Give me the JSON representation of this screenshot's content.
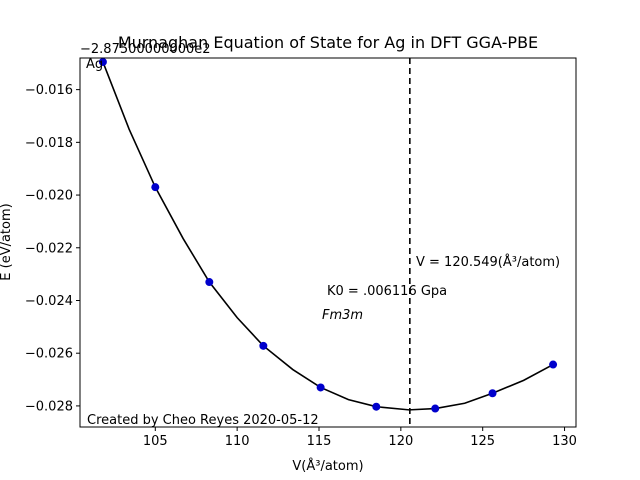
{
  "chart_data": {
    "type": "scatter",
    "title": "Murnaghan Equation of State for Ag in DFT GGA-PBE",
    "xlabel": "V(Å³/atom)",
    "ylabel": "E (eV/atom)",
    "y_offset_label": "−2.87500000000e2",
    "corner_label": "Ag",
    "xlim": [
      100.4,
      130.7
    ],
    "ylim": [
      -0.0288,
      -0.0148
    ],
    "xticks": [
      105,
      110,
      115,
      120,
      125,
      130
    ],
    "xtick_labels": [
      "105",
      "110",
      "115",
      "120",
      "125",
      "130"
    ],
    "yticks": [
      -0.028,
      -0.026,
      -0.024,
      -0.022,
      -0.02,
      -0.018,
      -0.016
    ],
    "ytick_labels": [
      "−0.028",
      "−0.026",
      "−0.024",
      "−0.022",
      "−0.020",
      "−0.018",
      "−0.016"
    ],
    "series": [
      {
        "marker": "circle",
        "color": "#0000cc",
        "x": [
          101.8,
          105.0,
          108.3,
          111.6,
          115.1,
          118.5,
          122.1,
          125.6,
          129.3
        ],
        "y": [
          -0.01495,
          -0.0197,
          -0.0233,
          -0.02572,
          -0.0273,
          -0.02803,
          -0.0281,
          -0.02752,
          -0.02643
        ]
      }
    ],
    "fit_curve": {
      "style": "solid",
      "color": "#000000",
      "x": [
        101.8,
        103.4,
        105.0,
        106.7,
        108.3,
        110.0,
        111.6,
        113.4,
        115.1,
        116.8,
        118.5,
        120.5,
        122.1,
        123.9,
        125.6,
        127.5,
        129.3
      ],
      "y": [
        -0.01495,
        -0.0175,
        -0.0197,
        -0.02165,
        -0.0233,
        -0.02465,
        -0.02572,
        -0.02662,
        -0.0273,
        -0.02776,
        -0.02803,
        -0.02815,
        -0.0281,
        -0.0279,
        -0.02752,
        -0.02703,
        -0.02643
      ]
    },
    "vline": {
      "x": 120.549,
      "style": "dashed",
      "color": "#000000"
    },
    "annotations": [
      {
        "text": "V = 120.549(Å³/atom)",
        "x": 121.0,
        "y": -0.02235
      },
      {
        "text": "K0 = .006116 Gpa",
        "x": 115.4,
        "y": -0.0235
      },
      {
        "text": "Fm3m",
        "x": 115.2,
        "y": -0.02445
      }
    ],
    "credit": "Created by Cheo Reyes 2020-05-12",
    "grid": false,
    "legend": "none"
  }
}
